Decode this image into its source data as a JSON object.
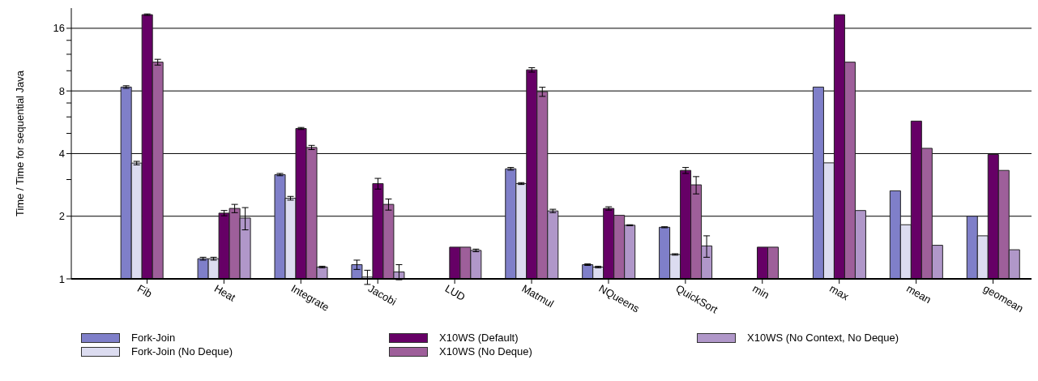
{
  "chart_data": {
    "type": "bar",
    "ylabel": "Time / Time for sequential Java",
    "log": "y",
    "grid": "y",
    "legend": "bottom",
    "categories": [
      "Fib",
      "Heat",
      "Integrate",
      "Jacobi",
      "LUD",
      "Matmul",
      "NQueens",
      "QuickSort",
      "min",
      "max",
      "mean",
      "geomean"
    ],
    "ylim": [
      1,
      20
    ],
    "yticks": [
      1,
      2,
      {
        "value": 3,
        "label": null
      },
      4,
      {
        "value": 5,
        "label": null
      },
      {
        "value": 6,
        "label": null
      },
      {
        "value": 7,
        "label": null
      },
      8,
      {
        "value": 10,
        "label": null
      },
      {
        "value": 12,
        "label": null
      },
      {
        "value": 14,
        "label": null
      },
      16
    ],
    "series": [
      {
        "name": "Fork-Join",
        "color": "#7f7fc9",
        "values": [
          8.35,
          1.25,
          3.17,
          1.17,
          null,
          3.38,
          1.17,
          1.77,
          null,
          8.35,
          2.65,
          2.0
        ],
        "errors": [
          0.12,
          0.02,
          0.04,
          0.06,
          null,
          0.05,
          0.01,
          0.01,
          null,
          null,
          null,
          null
        ]
      },
      {
        "name": "Fork-Join (No Deque)",
        "color": "#dcdcf0",
        "values": [
          3.6,
          1.25,
          2.44,
          1.02,
          null,
          2.87,
          1.14,
          1.31,
          null,
          3.61,
          1.82,
          1.61
        ],
        "errors": [
          0.07,
          0.02,
          0.05,
          0.08,
          null,
          0.03,
          0.01,
          0.01,
          null,
          null,
          null,
          null
        ]
      },
      {
        "name": "X10WS (Default)",
        "color": "#660066",
        "values": [
          18.6,
          2.07,
          5.28,
          2.87,
          1.42,
          10.1,
          2.18,
          3.32,
          1.42,
          18.6,
          5.73,
          3.96
        ],
        "errors": [
          0.15,
          0.06,
          0.06,
          0.17,
          null,
          0.25,
          0.04,
          0.11,
          null,
          null,
          null,
          null
        ]
      },
      {
        "name": "X10WS (No Deque)",
        "color": "#9e5f9a",
        "values": [
          11.0,
          2.18,
          4.28,
          2.28,
          1.42,
          7.93,
          2.02,
          2.83,
          1.42,
          11.0,
          4.24,
          3.32
        ],
        "errors": [
          0.35,
          0.1,
          0.1,
          0.14,
          null,
          0.4,
          null,
          0.27,
          null,
          null,
          null,
          null
        ]
      },
      {
        "name": "X10WS (No Context, No Deque)",
        "color": "#b097c9",
        "values": [
          null,
          1.96,
          1.14,
          1.08,
          1.37,
          2.12,
          1.81,
          1.44,
          null,
          2.13,
          1.45,
          1.38
        ],
        "errors": [
          null,
          0.24,
          0.01,
          0.09,
          0.02,
          0.04,
          0.01,
          0.17,
          null,
          null,
          null,
          null
        ]
      }
    ]
  }
}
